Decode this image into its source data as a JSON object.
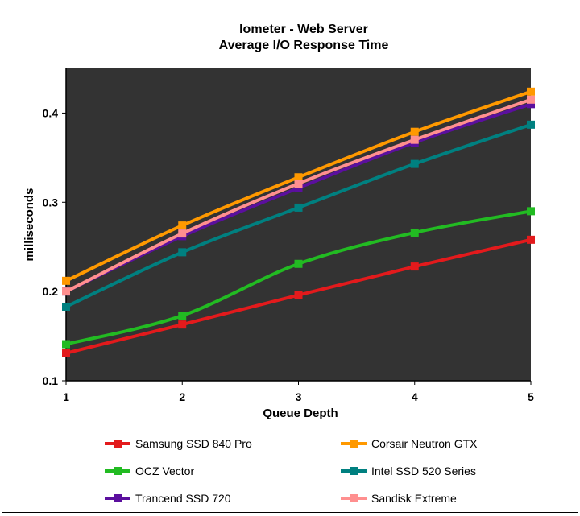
{
  "chart_data": {
    "type": "line",
    "title": "Iometer - Web Server",
    "subtitle": "Average I/O Response Time",
    "xlabel": "Queue Depth",
    "ylabel": "milliseconds",
    "x": [
      1,
      2,
      3,
      4,
      5
    ],
    "xlim": [
      1,
      5
    ],
    "ylim": [
      0.1,
      0.45
    ],
    "yticks": [
      0.1,
      0.2,
      0.3,
      0.4
    ],
    "xticks": [
      1,
      2,
      3,
      4,
      5
    ],
    "grid": false,
    "plot_background": "#333333",
    "legend_placement": "bottom",
    "series": [
      {
        "name": "Samsung SSD 840 Pro",
        "color": "#e31a1c",
        "values": [
          0.131,
          0.163,
          0.196,
          0.228,
          0.258
        ]
      },
      {
        "name": "Corsair Neutron GTX",
        "color": "#ff9900",
        "values": [
          0.212,
          0.274,
          0.328,
          0.379,
          0.424
        ]
      },
      {
        "name": "OCZ Vector",
        "color": "#22bb22",
        "values": [
          0.141,
          0.173,
          0.231,
          0.266,
          0.29
        ]
      },
      {
        "name": "Intel SSD 520 Series",
        "color": "#008080",
        "values": [
          0.183,
          0.244,
          0.294,
          0.343,
          0.387
        ]
      },
      {
        "name": "Trancend SSD 720",
        "color": "#5b0f9e",
        "values": [
          0.2,
          0.262,
          0.316,
          0.367,
          0.41
        ]
      },
      {
        "name": "Sandisk Extreme",
        "color": "#ff8f8f",
        "values": [
          0.2,
          0.265,
          0.321,
          0.37,
          0.415
        ]
      }
    ]
  }
}
